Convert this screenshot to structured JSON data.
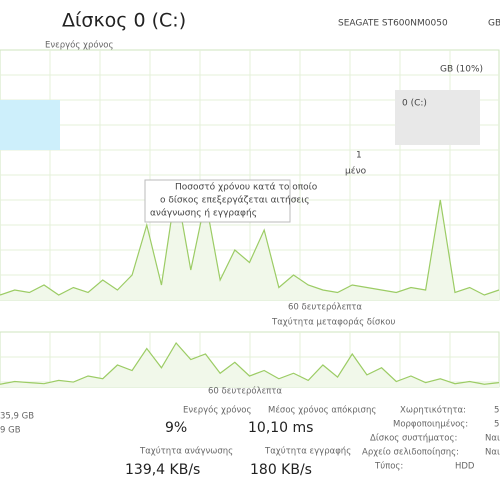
{
  "header": {
    "title": "Δίσκος 0 (C:)",
    "model": "SEAGATE ST600NM0050",
    "model_suffix": "GB"
  },
  "active_chart": {
    "label": "Ενεργός χρόνος",
    "max_label": "GB (10%)",
    "x_label": "60 δευτερόλεπτα",
    "values": [
      2,
      4,
      3,
      6,
      2,
      5,
      3,
      8,
      4,
      10,
      30,
      6,
      45,
      12,
      40,
      8,
      20,
      15,
      28,
      5,
      10,
      6,
      4,
      3,
      6,
      5,
      4,
      3,
      5,
      4,
      40,
      3,
      5,
      2,
      4
    ]
  },
  "overlay": {
    "disk_name": "0 (C:)",
    "num": "1",
    "num_caption": "μένο"
  },
  "tooltip": {
    "lines": [
      "Ποσοστό χρόνου κατά το οποίο",
      "ο δίσκος επεξεργάζεται αιτήσεις",
      "ανάγνωσης ή εγγραφής"
    ]
  },
  "transfer_chart": {
    "label": "Ταχύτητα μεταφοράς δίσκου",
    "x_label": "60 δευτερόλεπτα",
    "values": [
      5,
      10,
      8,
      6,
      12,
      9,
      20,
      15,
      40,
      30,
      70,
      35,
      80,
      50,
      60,
      25,
      45,
      20,
      30,
      15,
      25,
      12,
      40,
      18,
      60,
      22,
      35,
      10,
      20,
      8,
      15,
      6,
      10,
      5,
      8
    ]
  },
  "left": [
    "35,9 GB",
    "9 GB"
  ],
  "stats": [
    {
      "label": "Ενεργός χρόνος",
      "value": "9%"
    },
    {
      "label": "Μέσος χρόνος απόκρισης",
      "value": "10,10 ms"
    },
    {
      "label": "Ταχύτητα ανάγνωσης",
      "value": "139,4 KB/s"
    },
    {
      "label": "Ταχύτητα εγγραφής",
      "value": "180 KB/s"
    }
  ],
  "properties": [
    {
      "label": "Χωρητικότητα:",
      "value": "5"
    },
    {
      "label": "Μορφοποιημένος:",
      "value": "5"
    },
    {
      "label": "Δίσκος συστήματος:",
      "value": "Ναι"
    },
    {
      "label": "Αρχείο σελιδοποίησης:",
      "value": "Ναι"
    },
    {
      "label": "Τύπος:",
      "value": "HDD"
    }
  ]
}
